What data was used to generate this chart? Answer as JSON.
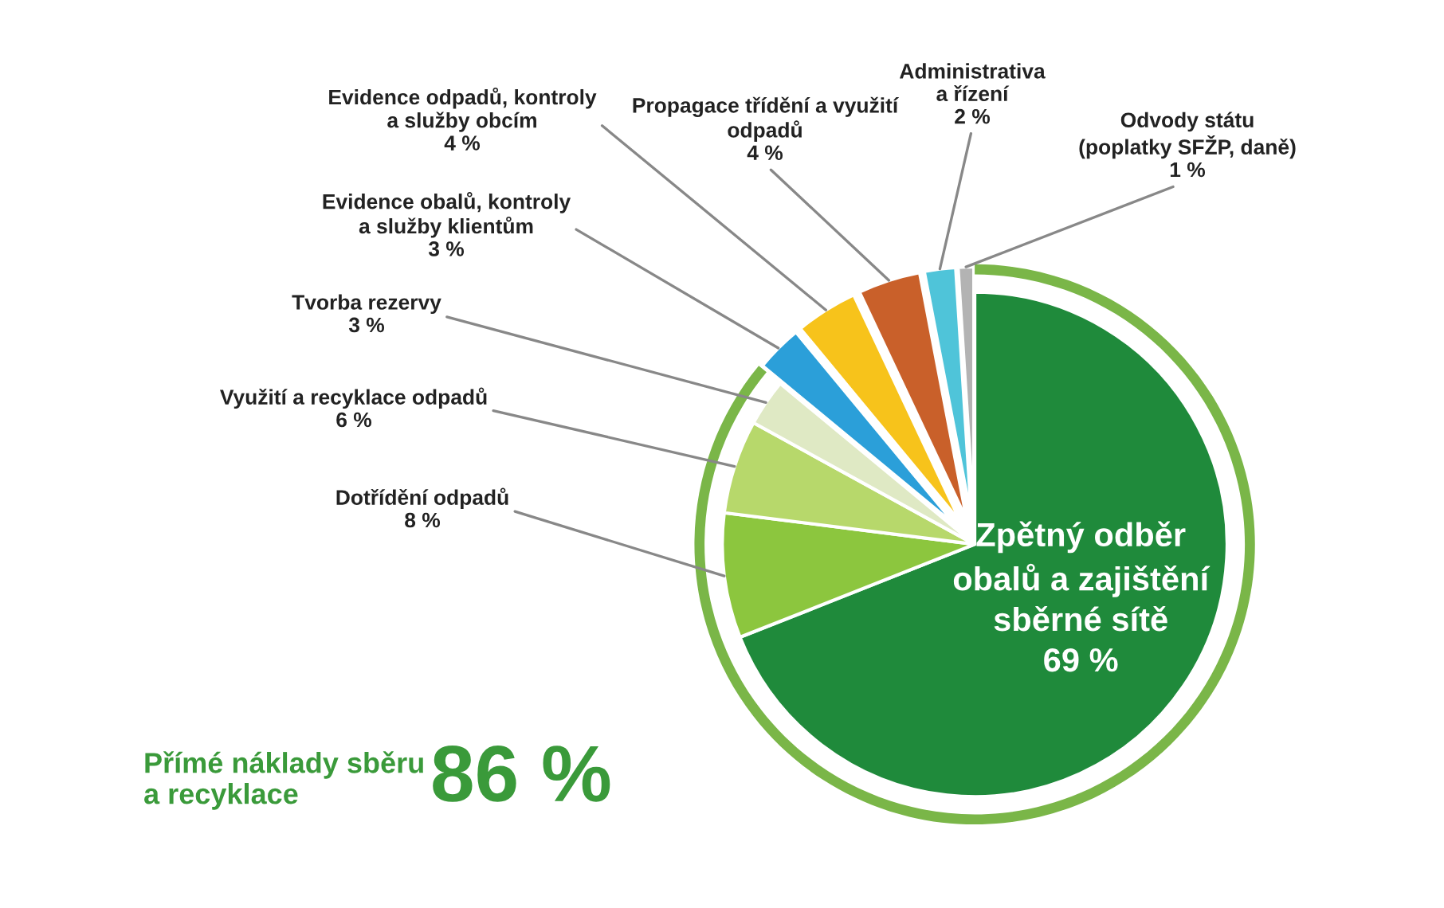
{
  "chart_data": {
    "type": "pie",
    "categories": [
      "Zpětný odběr\nobalů a zajištění\nsběrné sítě",
      "Dotřídění odpadů",
      "Využití a recyklace odpadů",
      "Tvorba rezervy",
      "Evidence obalů, kontroly\na služby klientům",
      "Evidence odpadů, kontroly\na služby obcím",
      "Propagace třídění a využití\nodpadů",
      "Administrativa\na řízení",
      "Odvody státu\n(poplatky SFŽP, daně)"
    ],
    "values": [
      69,
      8,
      6,
      3,
      3,
      4,
      4,
      2,
      1
    ],
    "value_labels": [
      "69 %",
      "8 %",
      "6 %",
      "3 %",
      "3 %",
      "4 %",
      "4 %",
      "2 %",
      "1 %"
    ],
    "colors": [
      "#1f8a3b",
      "#8cc63e",
      "#b7d86b",
      "#dfe9c4",
      "#2b9fd9",
      "#f7c31b",
      "#c9602a",
      "#4fc4d9",
      "#b3b3b3"
    ],
    "annotations": [
      "Přímé náklady sběru\na recyklace",
      "86 %"
    ],
    "legend": false
  }
}
